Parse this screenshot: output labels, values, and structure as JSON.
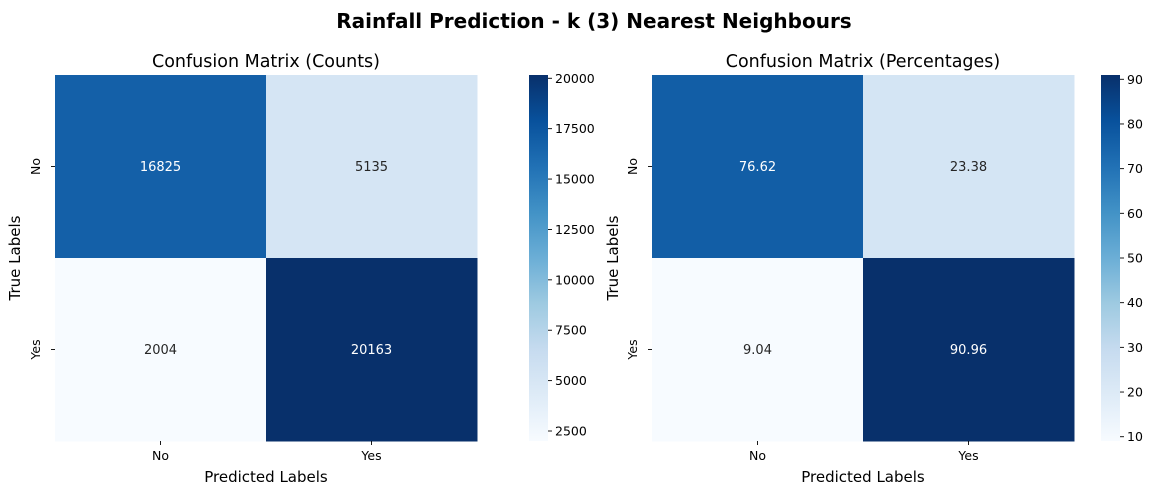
{
  "figure": {
    "suptitle": "Rainfall Prediction - k (3) Nearest Neighbours"
  },
  "chart_data": [
    {
      "type": "heatmap",
      "title": "Confusion Matrix (Counts)",
      "xlabel": "Predicted Labels",
      "ylabel": "True Labels",
      "x_categories": [
        "No",
        "Yes"
      ],
      "y_categories": [
        "No",
        "Yes"
      ],
      "values": [
        [
          16825,
          5135
        ],
        [
          2004,
          20163
        ]
      ],
      "cell_labels": [
        [
          "16825",
          "5135"
        ],
        [
          "2004",
          "20163"
        ]
      ],
      "colormap": "Blues",
      "color_range": [
        2004,
        20163
      ],
      "colorbar_ticks": [
        2500,
        5000,
        7500,
        10000,
        12500,
        15000,
        17500,
        20000
      ]
    },
    {
      "type": "heatmap",
      "title": "Confusion Matrix (Percentages)",
      "xlabel": "Predicted Labels",
      "ylabel": "True Labels",
      "x_categories": [
        "No",
        "Yes"
      ],
      "y_categories": [
        "No",
        "Yes"
      ],
      "values": [
        [
          76.62,
          23.38
        ],
        [
          9.04,
          90.96
        ]
      ],
      "cell_labels": [
        [
          "76.62",
          "23.38"
        ],
        [
          "9.04",
          "90.96"
        ]
      ],
      "colormap": "Blues",
      "color_range": [
        9.04,
        90.96
      ],
      "colorbar_ticks": [
        10,
        20,
        30,
        40,
        50,
        60,
        70,
        80,
        90
      ]
    }
  ],
  "colors": {
    "blues_stops": [
      "#f7fbff",
      "#deebf7",
      "#c6dbef",
      "#9ecae1",
      "#6baed6",
      "#4292c6",
      "#2171b5",
      "#08519c",
      "#08306b"
    ],
    "text_dark": "#262626",
    "text_light": "#ffffff"
  }
}
